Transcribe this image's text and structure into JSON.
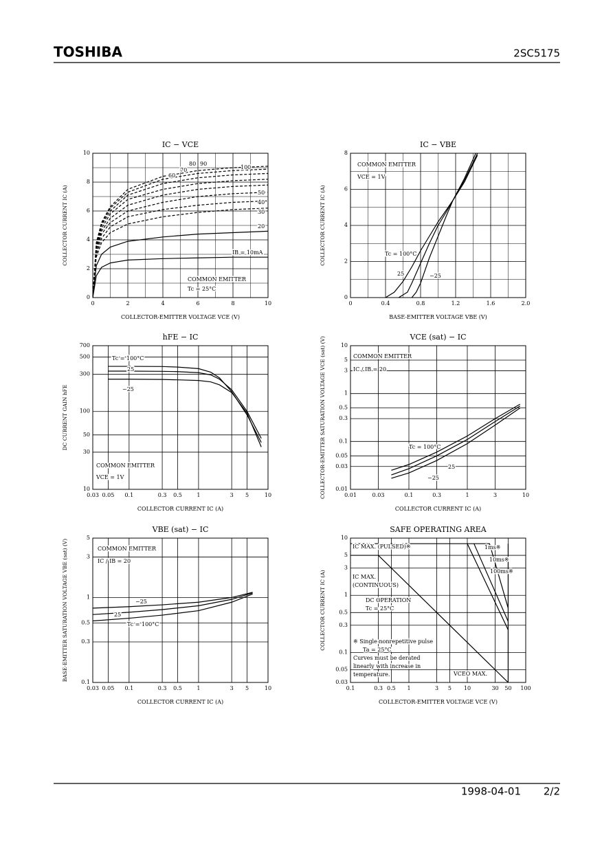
{
  "header": {
    "brand": "TOSHIBA",
    "part": "2SC5175"
  },
  "footer": {
    "date": "1998-04-01",
    "page": "2/2"
  },
  "chart_data": [
    {
      "type": "line",
      "title": "IC − VCE",
      "x_label": "COLLECTOR-EMITTER VOLTAGE VCE (V)",
      "y_label": "COLLECTOR CURRENT IC (A)",
      "xlim": [
        0,
        10
      ],
      "ylim": [
        0,
        10
      ],
      "xticks": [
        0,
        2,
        4,
        6,
        8,
        10
      ],
      "yticks": [
        0,
        2,
        4,
        6,
        8,
        10
      ],
      "x_minor_grid": [
        1,
        3,
        5,
        7,
        9
      ],
      "y_minor_grid": [
        1,
        3,
        5,
        7,
        9
      ],
      "grid": true,
      "color": "#000000",
      "notes": [
        "COMMON EMITTER",
        "Tc = 25°C"
      ],
      "series": [
        {
          "name": "IB = 10mA",
          "x": [
            0,
            0.2,
            0.5,
            1,
            2,
            4,
            6,
            8,
            10
          ],
          "values": [
            0,
            1.5,
            2.1,
            2.4,
            2.6,
            2.7,
            2.75,
            2.8,
            2.8
          ]
        },
        {
          "name": "20",
          "x": [
            0,
            0.2,
            0.5,
            1,
            2,
            4,
            6,
            8,
            10
          ],
          "values": [
            0,
            2.2,
            3.0,
            3.5,
            3.9,
            4.2,
            4.4,
            4.5,
            4.6
          ]
        },
        {
          "name": "30",
          "dashed": true,
          "x": [
            0,
            0.2,
            0.5,
            1,
            2,
            4,
            6,
            8,
            10
          ],
          "values": [
            0,
            2.8,
            3.8,
            4.5,
            5.1,
            5.6,
            5.9,
            6.1,
            6.2
          ]
        },
        {
          "name": "40",
          "dashed": true,
          "x": [
            0,
            0.2,
            0.5,
            1,
            2,
            4,
            6,
            8,
            10
          ],
          "values": [
            0,
            3.0,
            4.1,
            4.9,
            5.6,
            6.1,
            6.4,
            6.6,
            6.7
          ]
        },
        {
          "name": "50",
          "dashed": true,
          "x": [
            0,
            0.2,
            0.5,
            1,
            2,
            4,
            6,
            8,
            10
          ],
          "values": [
            0,
            3.2,
            4.4,
            5.2,
            6.0,
            6.6,
            7.0,
            7.2,
            7.3
          ]
        },
        {
          "name": "60",
          "dashed": true,
          "x": [
            0,
            0.2,
            0.5,
            1,
            2,
            4,
            6,
            8,
            10
          ],
          "values": [
            0,
            3.4,
            4.6,
            5.5,
            6.4,
            7.1,
            7.5,
            7.7,
            7.8
          ]
        },
        {
          "name": "70",
          "dashed": true,
          "x": [
            0,
            0.2,
            0.5,
            1,
            2,
            4,
            6,
            8,
            10
          ],
          "values": [
            0,
            3.5,
            4.8,
            5.8,
            6.8,
            7.5,
            7.9,
            8.1,
            8.2
          ]
        },
        {
          "name": "80",
          "dashed": true,
          "x": [
            0,
            0.2,
            0.5,
            1,
            2,
            4,
            6,
            8,
            10
          ],
          "values": [
            0,
            3.6,
            5.0,
            6.0,
            7.1,
            7.9,
            8.3,
            8.5,
            8.6
          ]
        },
        {
          "name": "90",
          "dashed": true,
          "x": [
            0,
            0.2,
            0.5,
            1,
            2,
            4,
            6,
            8,
            10
          ],
          "values": [
            0,
            3.7,
            5.1,
            6.2,
            7.3,
            8.2,
            8.6,
            8.8,
            8.9
          ]
        },
        {
          "name": "100",
          "dashed": true,
          "x": [
            0,
            0.2,
            0.5,
            1,
            2,
            4,
            6,
            8,
            10
          ],
          "values": [
            0,
            3.8,
            5.2,
            6.3,
            7.5,
            8.4,
            8.8,
            9.0,
            9.1
          ]
        }
      ]
    },
    {
      "type": "line",
      "title": "IC − VBE",
      "x_label": "BASE-EMITTER VOLTAGE VBE (V)",
      "y_label": "COLLECTOR CURRENT IC (A)",
      "xlim": [
        0,
        2
      ],
      "ylim": [
        0,
        8
      ],
      "xticks": [
        0,
        0.4,
        0.8,
        1.2,
        1.6,
        {
          "value": 2,
          "label": "2.0"
        }
      ],
      "yticks": [
        0,
        2,
        4,
        6,
        8
      ],
      "x_minor_grid": [
        0.2,
        0.6,
        1,
        1.4,
        1.8
      ],
      "y_minor_grid": [
        1,
        3,
        5,
        7
      ],
      "grid": true,
      "color": "#000000",
      "notes": [
        "COMMON EMITTER",
        "VCE = 1V"
      ],
      "series": [
        {
          "name": "Tc = 100°C",
          "x": [
            0.4,
            0.5,
            0.6,
            0.7,
            0.8,
            0.9,
            1.0,
            1.1,
            1.17,
            1.3,
            1.45
          ],
          "values": [
            0,
            0.3,
            0.9,
            1.7,
            2.6,
            3.4,
            4.2,
            4.9,
            5.4,
            6.4,
            7.9
          ]
        },
        {
          "name": "25",
          "x": [
            0.55,
            0.65,
            0.7,
            0.8,
            0.9,
            1.0,
            1.1,
            1.17,
            1.3,
            1.45
          ],
          "values": [
            0,
            0.3,
            0.8,
            1.9,
            3.0,
            4.0,
            4.8,
            5.4,
            6.5,
            8.0
          ]
        },
        {
          "name": "−25",
          "x": [
            0.7,
            0.75,
            0.8,
            0.9,
            1.0,
            1.1,
            1.17,
            1.3,
            1.43
          ],
          "values": [
            0,
            0.3,
            0.8,
            2.2,
            3.4,
            4.6,
            5.4,
            6.6,
            8.0
          ]
        }
      ]
    },
    {
      "type": "line",
      "title": "hFE − IC",
      "x_label": "COLLECTOR CURRENT IC (A)",
      "y_label": "DC CURRENT GAIN hFE",
      "xscale": "log",
      "yscale": "log",
      "xlim": [
        0.03,
        10
      ],
      "ylim": [
        10,
        700
      ],
      "xticks": [
        0.03,
        0.05,
        0.1,
        0.3,
        0.5,
        1,
        3,
        5,
        10
      ],
      "yticks": [
        10,
        30,
        50,
        100,
        300,
        500,
        700
      ],
      "grid": true,
      "color": "#000000",
      "notes": [
        "COMMON EMITTER",
        "VCE = 1V"
      ],
      "series": [
        {
          "name": "Tc = 100°C",
          "x": [
            0.05,
            0.1,
            0.3,
            0.5,
            1,
            1.5,
            2,
            3,
            5,
            8
          ],
          "values": [
            380,
            380,
            378,
            372,
            355,
            320,
            270,
            180,
            90,
            40
          ]
        },
        {
          "name": "25",
          "x": [
            0.05,
            0.1,
            0.3,
            0.5,
            1,
            1.5,
            2,
            3,
            5,
            8
          ],
          "values": [
            330,
            330,
            328,
            325,
            315,
            295,
            260,
            190,
            100,
            45
          ]
        },
        {
          "name": "−25",
          "x": [
            0.05,
            0.1,
            0.3,
            0.5,
            1,
            1.5,
            2,
            3,
            5,
            8
          ],
          "values": [
            260,
            260,
            258,
            255,
            250,
            240,
            220,
            175,
            95,
            35
          ]
        }
      ]
    },
    {
      "type": "line",
      "title": "VCE (sat) − IC",
      "x_label": "COLLECTOR CURRENT IC (A)",
      "y_label": "COLLECTOR-EMITTER SATURATION VOLTAGE VCE (sat) (V)",
      "xscale": "log",
      "yscale": "log",
      "xlim": [
        0.01,
        10
      ],
      "ylim": [
        0.01,
        10
      ],
      "xticks": [
        0.01,
        0.03,
        0.1,
        0.3,
        1,
        3,
        10
      ],
      "yticks": [
        0.01,
        0.03,
        0.05,
        0.1,
        0.3,
        0.5,
        1,
        3,
        5,
        10
      ],
      "grid": true,
      "color": "#000000",
      "notes": [
        "COMMON EMITTER",
        "IC / IB = 20"
      ],
      "series": [
        {
          "name": "Tc = 100°C",
          "x": [
            0.05,
            0.1,
            0.3,
            1,
            3,
            8
          ],
          "values": [
            0.025,
            0.033,
            0.06,
            0.13,
            0.3,
            0.6
          ]
        },
        {
          "name": "25",
          "x": [
            0.05,
            0.1,
            0.3,
            1,
            3,
            8
          ],
          "values": [
            0.02,
            0.027,
            0.05,
            0.11,
            0.26,
            0.55
          ]
        },
        {
          "name": "−25",
          "x": [
            0.05,
            0.1,
            0.3,
            1,
            3,
            8
          ],
          "values": [
            0.017,
            0.022,
            0.04,
            0.09,
            0.22,
            0.5
          ]
        }
      ]
    },
    {
      "type": "line",
      "title": "VBE (sat) − IC",
      "x_label": "COLLECTOR CURRENT IC (A)",
      "y_label": "BASE-EMITTER SATURATION VOLTAGE VBE (sat) (V)",
      "xscale": "log",
      "yscale": "log",
      "xlim": [
        0.03,
        10
      ],
      "ylim": [
        0.1,
        5
      ],
      "xticks": [
        0.03,
        0.05,
        0.1,
        0.3,
        0.5,
        1,
        3,
        5,
        10
      ],
      "yticks": [
        0.1,
        0.3,
        0.5,
        1,
        3,
        5
      ],
      "grid": true,
      "color": "#000000",
      "notes": [
        "COMMON EMITTER",
        "IC / IB = 20"
      ],
      "series": [
        {
          "name": "−25",
          "x": [
            0.03,
            0.1,
            0.3,
            1,
            3,
            6
          ],
          "values": [
            0.75,
            0.78,
            0.82,
            0.88,
            1.0,
            1.15
          ]
        },
        {
          "name": "25",
          "x": [
            0.03,
            0.1,
            0.3,
            1,
            3,
            6
          ],
          "values": [
            0.63,
            0.67,
            0.72,
            0.8,
            0.95,
            1.13
          ]
        },
        {
          "name": "Tc = 100°C",
          "x": [
            0.03,
            0.1,
            0.3,
            1,
            3,
            6
          ],
          "values": [
            0.53,
            0.57,
            0.62,
            0.7,
            0.88,
            1.1
          ]
        }
      ]
    },
    {
      "type": "line",
      "title": "SAFE OPERATING AREA",
      "x_label": "COLLECTOR-EMITTER VOLTAGE VCE (V)",
      "y_label": "COLLECTOR CURRENT IC (A)",
      "xscale": "log",
      "yscale": "log",
      "xlim": [
        0.1,
        100
      ],
      "ylim": [
        0.03,
        10
      ],
      "xticks": [
        0.1,
        0.3,
        0.5,
        1,
        3,
        5,
        10,
        30,
        50,
        100
      ],
      "yticks": [
        0.03,
        0.05,
        0.1,
        0.3,
        0.5,
        1,
        3,
        5,
        10
      ],
      "grid": true,
      "color": "#000000",
      "notes": [
        "IC MAX. (PULSED)※",
        "IC MAX.",
        "(CONTINUOUS)",
        "DC OPERATION",
        "Tc = 25°C",
        "※ Single nonrepetitive pulse",
        "Ta = 25°C",
        "Curves must be derated",
        "linearly with increase in",
        "temperature."
      ],
      "series": [
        {
          "name": "1ms※",
          "x": [
            0.1,
            24,
            50
          ],
          "values": [
            8,
            8,
            0.6
          ]
        },
        {
          "name": "10ms※",
          "x": [
            13,
            50
          ],
          "values": [
            8,
            0.35
          ]
        },
        {
          "name": "100ms※",
          "x": [
            10,
            50
          ],
          "values": [
            8,
            0.25
          ]
        },
        {
          "x": [
            0.1,
            0.3,
            50
          ],
          "values": [
            5,
            5,
            0.03
          ]
        },
        {
          "name": "VCEO MAX.",
          "x": [
            50,
            50
          ],
          "values": [
            0.03,
            8
          ]
        }
      ]
    }
  ]
}
